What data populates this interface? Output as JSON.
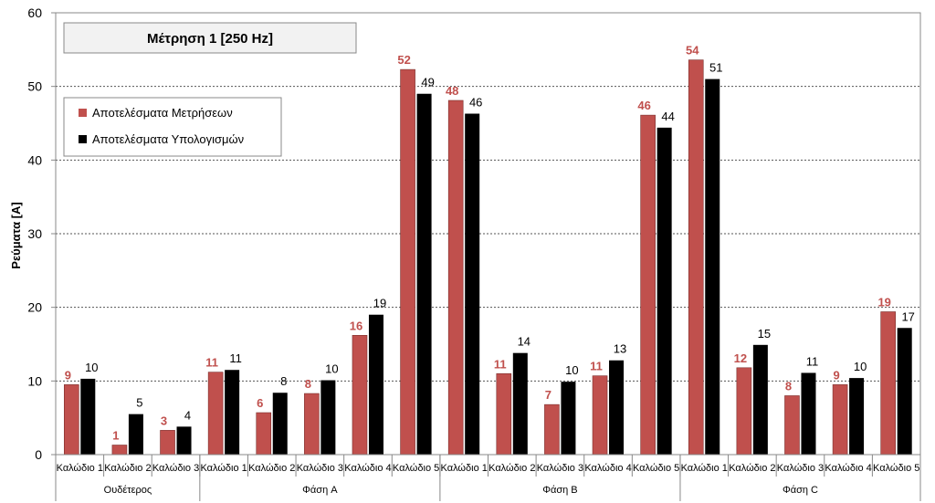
{
  "chart_data": {
    "type": "bar",
    "title": "Μέτρηση 1 [250 Hz]",
    "xlabel": "",
    "ylabel": "Ρεύματα [A]",
    "ylim": [
      0,
      60
    ],
    "yticks": [
      0,
      10,
      20,
      30,
      40,
      50,
      60
    ],
    "grid": true,
    "legend_position": "top-left",
    "groups": [
      {
        "name": "Ουδέτερος",
        "count": 3
      },
      {
        "name": "Φάση A",
        "count": 5
      },
      {
        "name": "Φάση B",
        "count": 5
      },
      {
        "name": "Φάση C",
        "count": 5
      }
    ],
    "categories": [
      "Καλώδιο 1",
      "Καλώδιο 2",
      "Καλώδιο 3",
      "Καλώδιο 1",
      "Καλώδιο 2",
      "Καλώδιο 3",
      "Καλώδιο 4",
      "Καλώδιο 5",
      "Καλώδιο 1",
      "Καλώδιο 2",
      "Καλώδιο 3",
      "Καλώδιο 4",
      "Καλώδιο 5",
      "Καλώδιο 1",
      "Καλώδιο 2",
      "Καλώδιο 3",
      "Καλώδιο 4",
      "Καλώδιο 5"
    ],
    "series": [
      {
        "name": "Αποτελέσματα Μετρήσεων",
        "color": "#c0504d",
        "values": [
          9.5,
          1.3,
          3.3,
          11.2,
          5.7,
          8.3,
          16.2,
          52.3,
          48.1,
          11.0,
          6.8,
          10.7,
          46.1,
          53.6,
          11.8,
          8.0,
          9.5,
          19.4
        ],
        "labels": [
          "9",
          "1",
          "3",
          "11",
          "6",
          "8",
          "16",
          "52",
          "48",
          "11",
          "7",
          "11",
          "46",
          "54",
          "12",
          "8",
          "9",
          "19"
        ]
      },
      {
        "name": "Αποτελέσματα Υπολογισμών",
        "color": "#000000",
        "values": [
          10.3,
          5.5,
          3.8,
          11.5,
          8.4,
          10.1,
          19.0,
          49.0,
          46.3,
          13.8,
          9.9,
          12.8,
          44.4,
          51.0,
          14.9,
          11.1,
          10.4,
          17.2
        ],
        "labels": [
          "10",
          "5",
          "4",
          "11",
          "8",
          "10",
          "19",
          "49",
          "46",
          "14",
          "10",
          "13",
          "44",
          "51",
          "15",
          "11",
          "10",
          "17"
        ]
      }
    ]
  }
}
